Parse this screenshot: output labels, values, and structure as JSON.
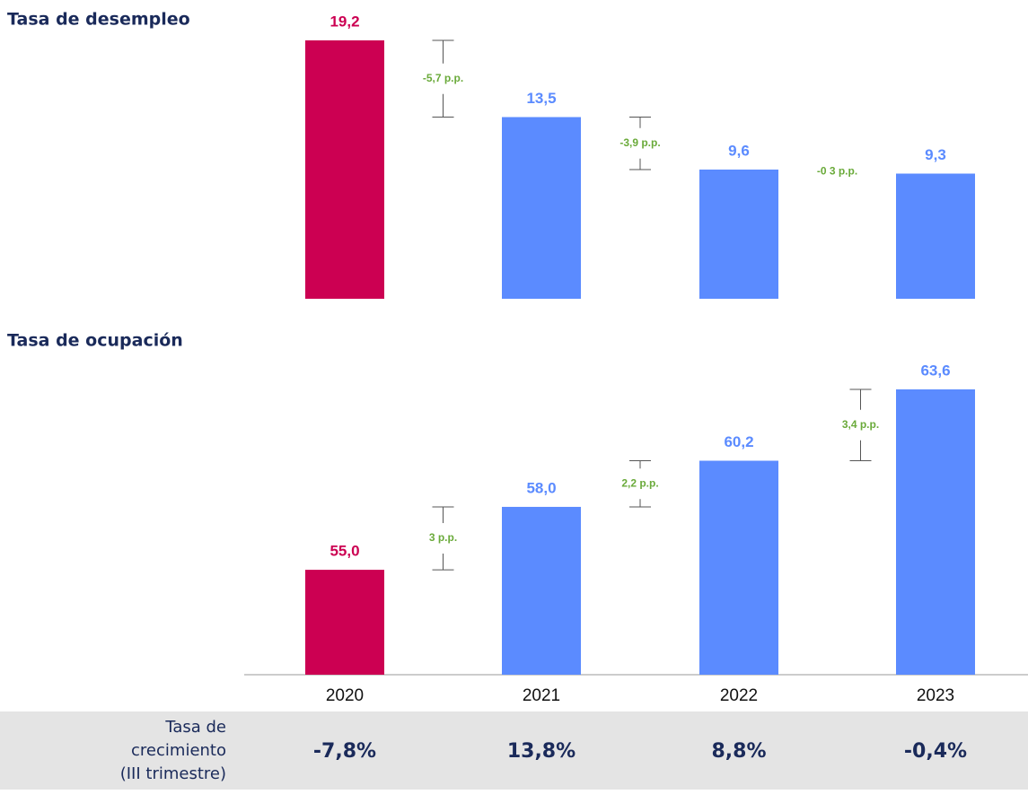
{
  "chart_data": [
    {
      "type": "bar",
      "title": "Tasa de desempleo",
      "values": [
        19.2,
        13.5,
        9.6,
        9.3
      ],
      "value_labels": [
        "19,2",
        "13,5",
        "9,6",
        "9,3"
      ],
      "colors": [
        "#cc0052",
        "#5b8bff",
        "#5b8bff",
        "#5b8bff"
      ],
      "annotations": [
        "-5,7 p.p.",
        "-3,9 p.p.",
        "-0 3 p.p."
      ],
      "ylim": [
        0,
        19.2
      ]
    },
    {
      "type": "bar",
      "title": "Tasa de ocupación",
      "categories": [
        "2020",
        "2021",
        "2022",
        "2023"
      ],
      "values": [
        55.0,
        58.0,
        60.2,
        63.6
      ],
      "value_labels": [
        "55,0",
        "58,0",
        "60,2",
        "63,6"
      ],
      "colors": [
        "#cc0052",
        "#5b8bff",
        "#5b8bff",
        "#5b8bff"
      ],
      "annotations": [
        "3 p.p.",
        "2,2 p.p.",
        "3,4 p.p."
      ],
      "ylim": [
        50,
        63.6
      ]
    }
  ],
  "table": {
    "label": [
      "Tasa de",
      "crecimiento",
      "(III trimestre)"
    ],
    "values": [
      "-7,8%",
      "13,8%",
      "8,8%",
      "-0,4%"
    ]
  }
}
